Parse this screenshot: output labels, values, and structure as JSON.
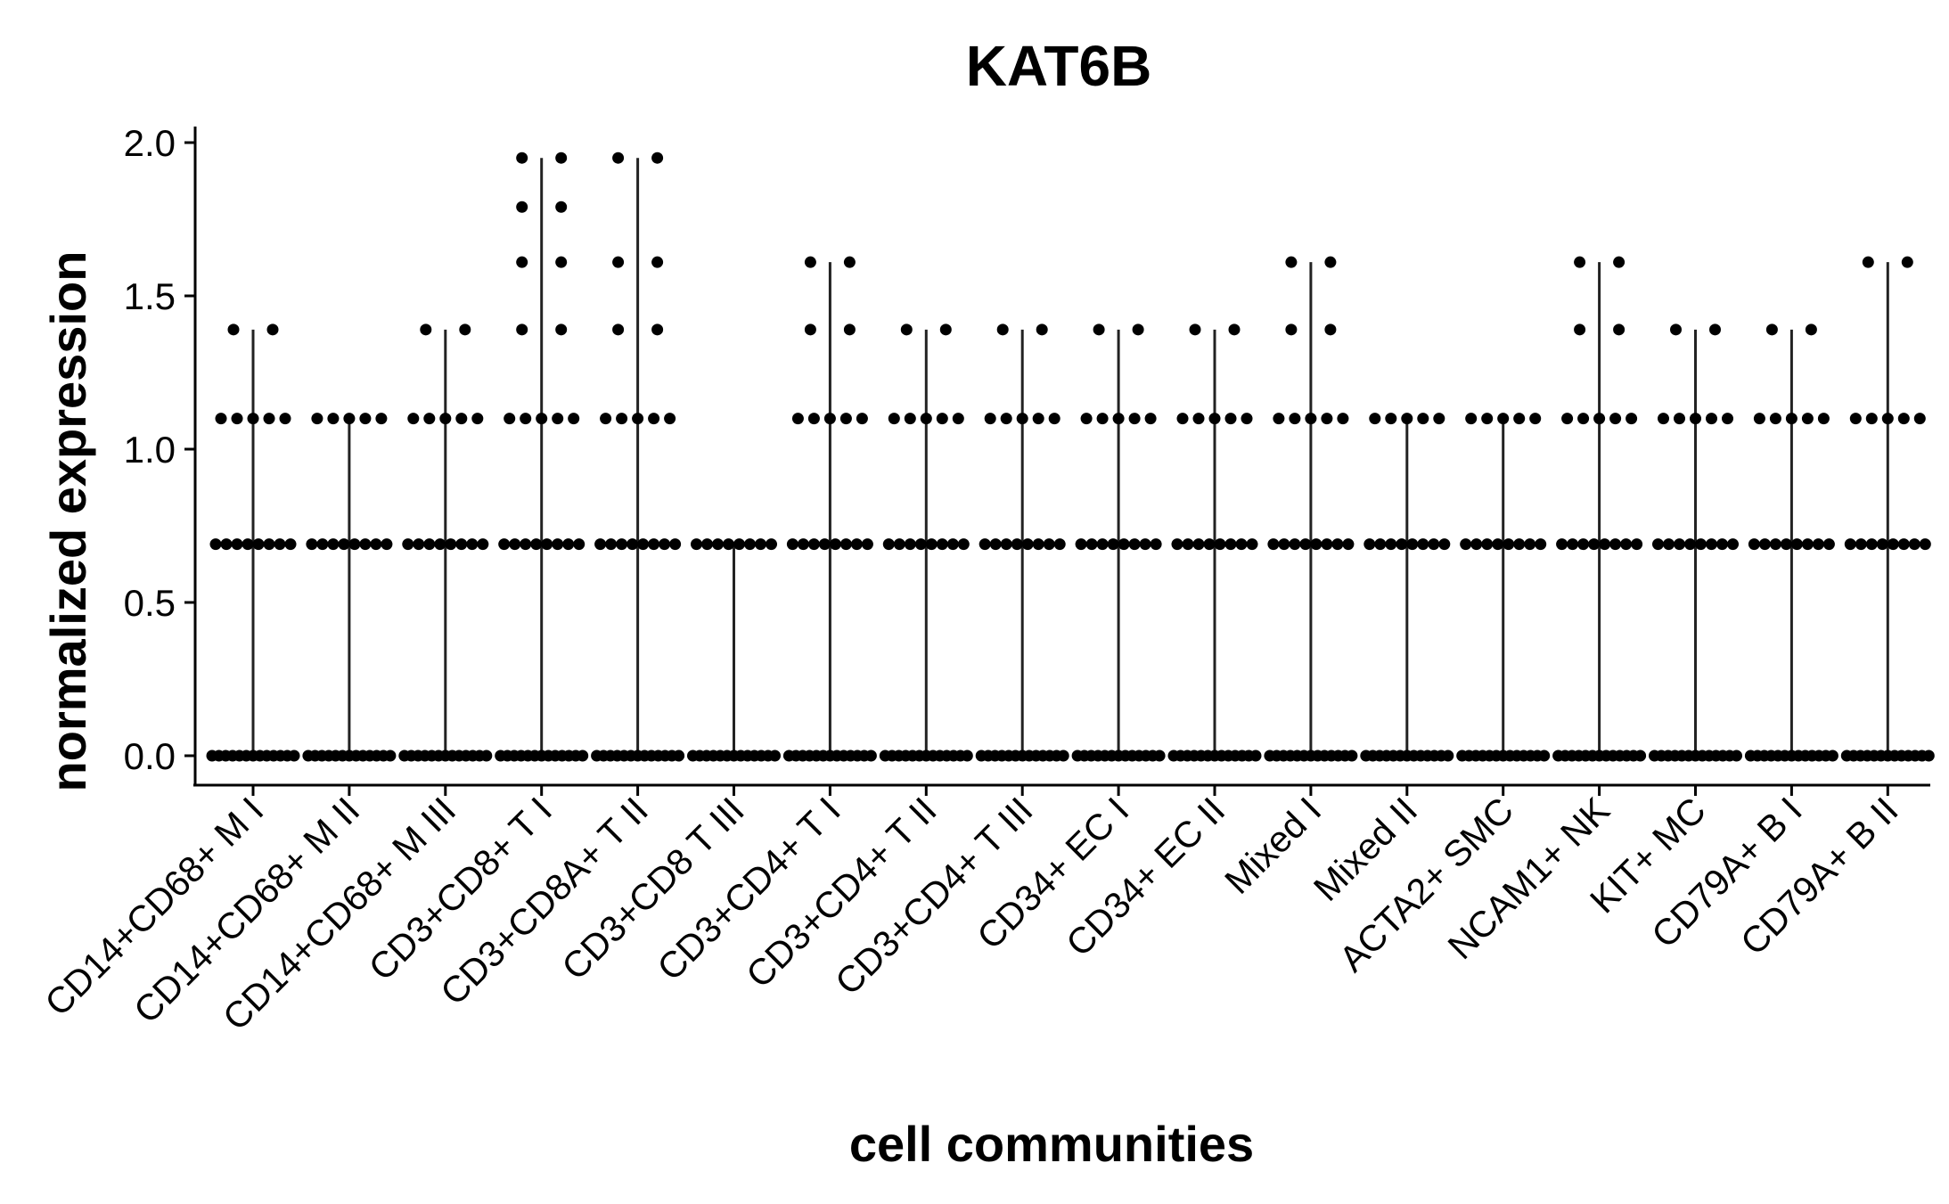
{
  "chart_data": {
    "type": "scatter",
    "title": "KAT6B",
    "xlabel": "cell communities",
    "ylabel": "normalized expression",
    "ylim": [
      -0.1,
      2.05
    ],
    "yticks": [
      "0.0",
      "0.5",
      "1.0",
      "1.5",
      "2.0"
    ],
    "ytick_values": [
      0,
      0.5,
      1.0,
      1.5,
      2.0
    ],
    "grid": false,
    "legend": "none",
    "point_color": "#000000",
    "line_color": "#222222",
    "categories": [
      "CD14+CD68+ M I",
      "CD14+CD68+ M II",
      "CD14+CD68+ M III",
      "CD3+CD8+ T I",
      "CD3+CD8A+ T II",
      "CD3+CD8 T III",
      "CD3+CD4+ T I",
      "CD3+CD4+ T II",
      "CD3+CD4+ T III",
      "CD34+ EC I",
      "CD34+ EC II",
      "Mixed I",
      "Mixed II",
      "ACTA2+ SMC",
      "NCAM1+ NK",
      "KIT+ MC",
      "CD79A+ B I",
      "CD79A+ B II"
    ],
    "max_values": [
      1.39,
      1.1,
      1.39,
      1.95,
      1.95,
      0.69,
      1.61,
      1.39,
      1.39,
      1.39,
      1.39,
      1.61,
      1.1,
      1.1,
      1.61,
      1.39,
      1.39,
      1.61
    ],
    "points": [
      {
        "category": "CD14+CD68+ M I",
        "values": [
          0,
          0.69,
          1.1,
          1.39
        ]
      },
      {
        "category": "CD14+CD68+ M II",
        "values": [
          0,
          0.69,
          1.1
        ]
      },
      {
        "category": "CD14+CD68+ M III",
        "values": [
          0,
          0.69,
          1.1,
          1.39
        ]
      },
      {
        "category": "CD3+CD8+ T I",
        "values": [
          0,
          0.69,
          1.1,
          1.39,
          1.61,
          1.79,
          1.95
        ]
      },
      {
        "category": "CD3+CD8A+ T II",
        "values": [
          0,
          0.69,
          1.1,
          1.39,
          1.61,
          1.95
        ]
      },
      {
        "category": "CD3+CD8 T III",
        "values": [
          0,
          0.69
        ]
      },
      {
        "category": "CD3+CD4+ T I",
        "values": [
          0,
          0.69,
          1.1,
          1.39,
          1.61
        ]
      },
      {
        "category": "CD3+CD4+ T II",
        "values": [
          0,
          0.69,
          1.1,
          1.39
        ]
      },
      {
        "category": "CD3+CD4+ T III",
        "values": [
          0,
          0.69,
          1.1,
          1.39
        ]
      },
      {
        "category": "CD34+ EC I",
        "values": [
          0,
          0.69,
          1.1,
          1.39
        ]
      },
      {
        "category": "CD34+ EC II",
        "values": [
          0,
          0.69,
          1.1,
          1.39
        ]
      },
      {
        "category": "Mixed I",
        "values": [
          0,
          0.69,
          1.1,
          1.39,
          1.61
        ]
      },
      {
        "category": "Mixed II",
        "values": [
          0,
          0.69,
          1.1
        ]
      },
      {
        "category": "ACTA2+ SMC",
        "values": [
          0,
          0.69,
          1.1
        ]
      },
      {
        "category": "NCAM1+ NK",
        "values": [
          0,
          0.69,
          1.1,
          1.39,
          1.61
        ]
      },
      {
        "category": "KIT+ MC",
        "values": [
          0,
          0.69,
          1.1,
          1.39
        ]
      },
      {
        "category": "CD79A+ B I",
        "values": [
          0,
          0.69,
          1.1,
          1.39
        ]
      },
      {
        "category": "CD79A+ B II",
        "values": [
          0,
          0.69,
          1.1,
          1.61
        ]
      }
    ]
  }
}
